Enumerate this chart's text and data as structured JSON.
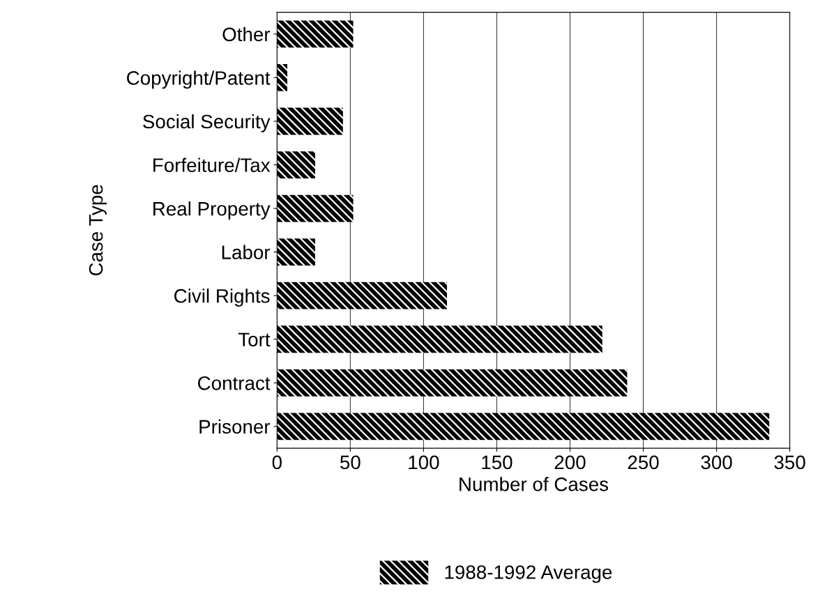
{
  "chart_data": {
    "type": "bar",
    "orientation": "horizontal",
    "categories": [
      "Other",
      "Copyright/Patent",
      "Social Security",
      "Forfeiture/Tax",
      "Real Property",
      "Labor",
      "Civil Rights",
      "Tort",
      "Contract",
      "Prisoner"
    ],
    "series": [
      {
        "name": "1988-1992 Average",
        "color": "#000000",
        "values": [
          52,
          7,
          45,
          26,
          52,
          26,
          116,
          222,
          239,
          336
        ]
      }
    ],
    "xlabel": "Number of Cases",
    "ylabel": "Case Type",
    "xlim": [
      0,
      350
    ],
    "xticks": [
      0,
      50,
      100,
      150,
      200,
      250,
      300,
      350
    ],
    "grid": "x",
    "legend": "bottom"
  }
}
